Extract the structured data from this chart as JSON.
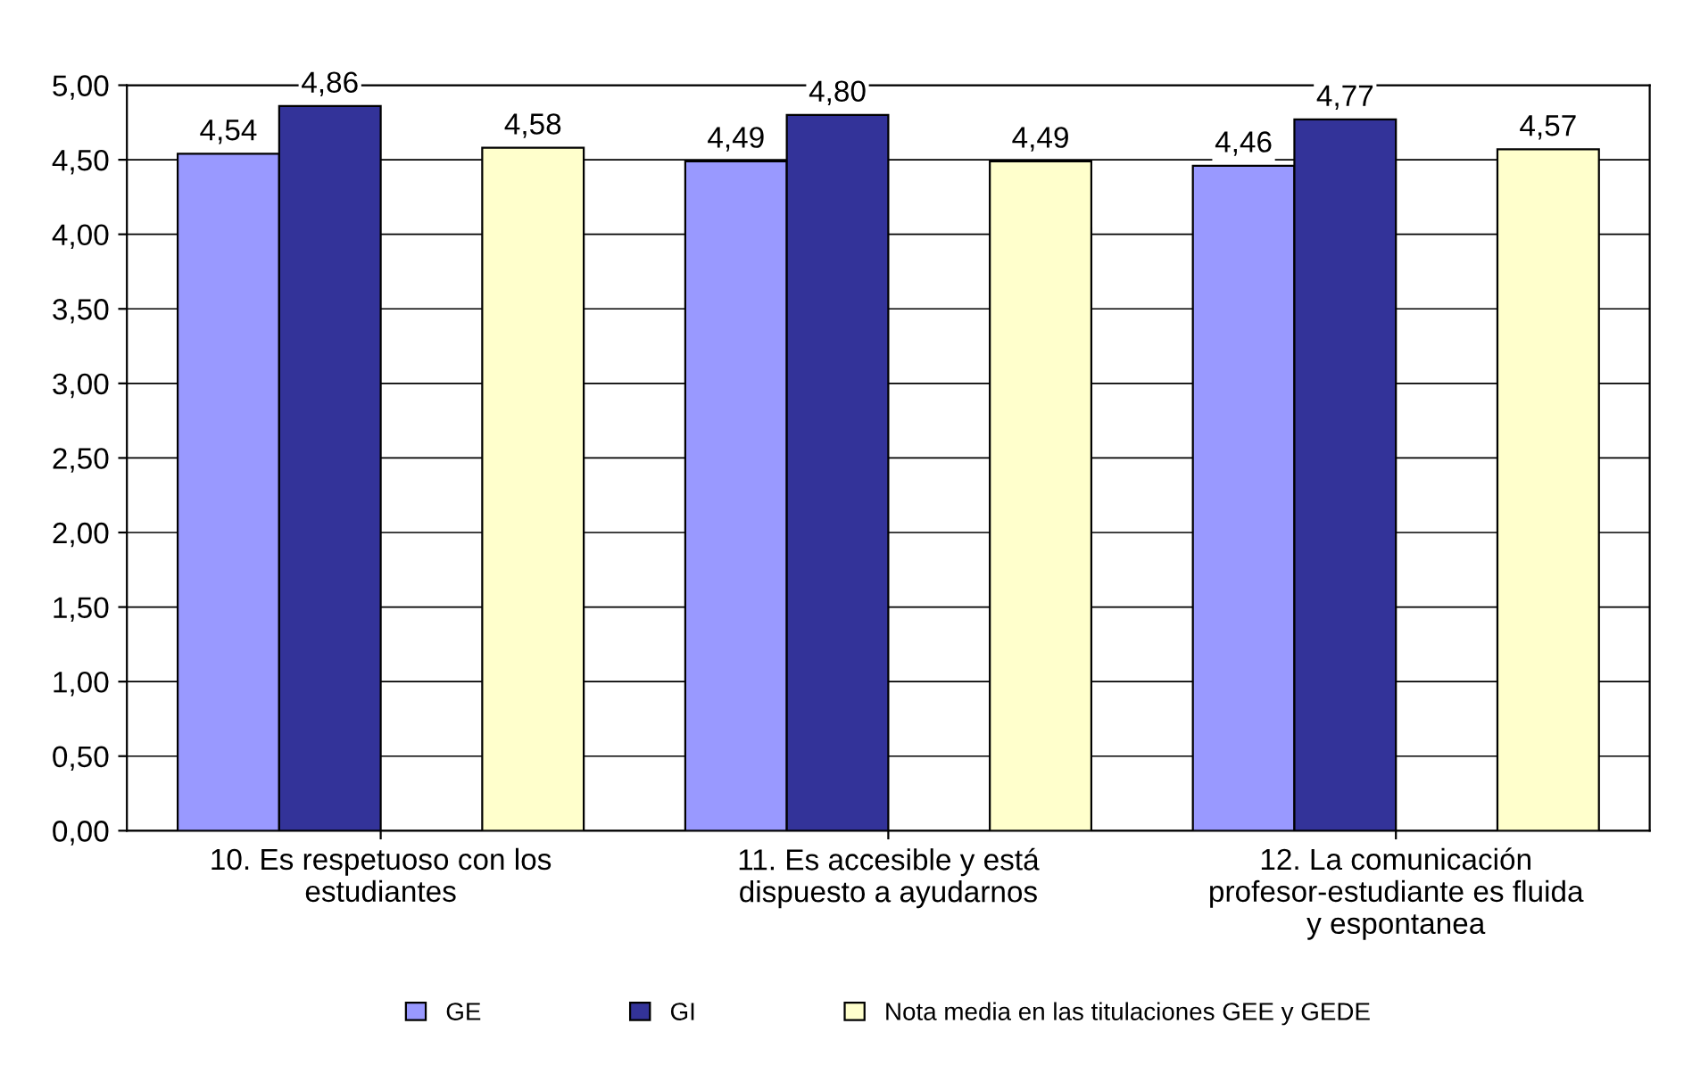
{
  "chart_data": {
    "type": "bar",
    "categories": [
      "10. Es respetuoso con los\nestudiantes",
      "11. Es accesible y está\ndispuesto a ayudarnos",
      "12. La comunicación\nprofesor-estudiante es fluida\ny espontanea"
    ],
    "series": [
      {
        "name": "GE",
        "color": "#9999ff",
        "values": [
          4.54,
          4.49,
          4.46
        ],
        "value_labels": [
          "4,54",
          "4,49",
          "4,46"
        ]
      },
      {
        "name": "GI",
        "color": "#333399",
        "values": [
          4.86,
          4.8,
          4.77
        ],
        "value_labels": [
          "4,86",
          "4,80",
          "4,77"
        ]
      },
      {
        "name": "Nota media en las titulaciones GEE y GEDE",
        "color": "#ffffcc",
        "values": [
          4.58,
          4.49,
          4.57
        ],
        "value_labels": [
          "4,58",
          "4,49",
          "4,57"
        ]
      }
    ],
    "ylim": [
      0,
      5
    ],
    "yticks": [
      {
        "value": 0,
        "label": "0,00"
      },
      {
        "value": 0.5,
        "label": "0,50"
      },
      {
        "value": 1,
        "label": "1,00"
      },
      {
        "value": 1.5,
        "label": "1,50"
      },
      {
        "value": 2,
        "label": "2,00"
      },
      {
        "value": 2.5,
        "label": "2,50"
      },
      {
        "value": 3,
        "label": "3,00"
      },
      {
        "value": 3.5,
        "label": "3,50"
      },
      {
        "value": 4,
        "label": "4,00"
      },
      {
        "value": 4.5,
        "label": "4,50"
      },
      {
        "value": 5,
        "label": "5,00"
      }
    ],
    "grid": "y",
    "legend": "bottom"
  }
}
